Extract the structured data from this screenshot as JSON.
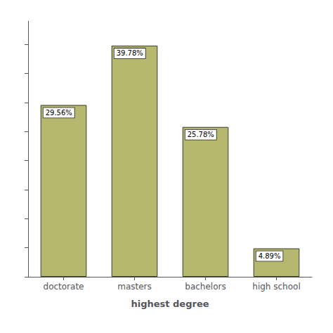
{
  "chart_data": {
    "type": "bar",
    "categories": [
      "doctorate",
      "masters",
      "bachelors",
      "high school"
    ],
    "values": [
      29.56,
      39.78,
      25.78,
      4.89
    ],
    "value_labels": [
      "29.56%",
      "39.78%",
      "25.78%",
      "4.89%"
    ],
    "data_labels": true,
    "color": "#b5b86e",
    "xlabel": "highest degree",
    "ylim": [
      0,
      44
    ],
    "yticks": [
      0,
      5,
      10,
      15,
      20,
      25,
      30,
      35,
      40
    ],
    "grid": false,
    "tick_labels": "x"
  }
}
